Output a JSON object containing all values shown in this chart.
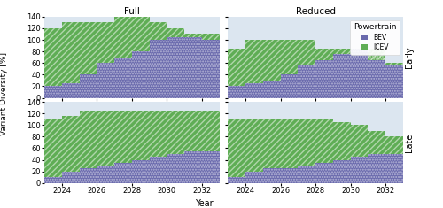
{
  "years": [
    2023,
    2024,
    2025,
    2026,
    2027,
    2028,
    2029,
    2030,
    2031,
    2032,
    2033
  ],
  "early_full_bev": [
    20,
    25,
    40,
    60,
    70,
    80,
    100,
    105,
    105,
    100,
    100
  ],
  "early_full_total": [
    120,
    130,
    130,
    130,
    140,
    140,
    130,
    120,
    110,
    110,
    100
  ],
  "early_reduced_bev": [
    20,
    25,
    30,
    40,
    55,
    65,
    75,
    85,
    85,
    55,
    55
  ],
  "early_reduced_total": [
    85,
    100,
    100,
    100,
    100,
    85,
    85,
    85,
    65,
    60,
    55
  ],
  "late_full_bev": [
    10,
    20,
    25,
    30,
    35,
    40,
    45,
    50,
    55,
    55,
    55
  ],
  "late_full_total": [
    110,
    115,
    125,
    125,
    125,
    125,
    125,
    125,
    125,
    125,
    125
  ],
  "late_reduced_bev": [
    10,
    20,
    25,
    25,
    30,
    35,
    40,
    45,
    50,
    50,
    50
  ],
  "late_reduced_total": [
    110,
    110,
    110,
    110,
    110,
    110,
    105,
    100,
    90,
    80,
    75
  ],
  "bev_color": "#6a6aad",
  "icev_color": "#5fad55",
  "bg_color": "#dce6f0",
  "plot_bg": "#dce6f0",
  "ylim": [
    0,
    140
  ],
  "yticks": [
    0,
    20,
    40,
    60,
    80,
    100,
    120,
    140
  ],
  "xtick_years": [
    2024,
    2026,
    2028,
    2030,
    2032
  ],
  "col_titles": [
    "Full",
    "Reduced"
  ],
  "row_labels": [
    "Early",
    "Late"
  ],
  "xlabel": "Year",
  "ylabel": "Variant Diversity [%]",
  "legend_title": "Powertrain",
  "legend_bev": "BEV",
  "legend_icev": "ICEV"
}
